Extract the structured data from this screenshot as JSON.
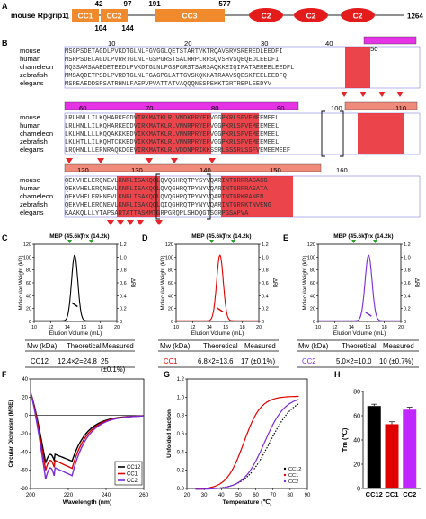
{
  "panel_letters": [
    "A",
    "B",
    "C",
    "D",
    "E",
    "F",
    "G",
    "H"
  ],
  "panelA": {
    "protein": "mouse Rpgrip1l",
    "domains": [
      "CC1",
      "CC2",
      "CC3",
      "C2",
      "C2",
      "C2"
    ],
    "positions_top": [
      "1",
      "42",
      "97",
      "191",
      "577",
      "1264"
    ],
    "positions_bottom": [
      "104",
      "144"
    ]
  },
  "panelB": {
    "species": [
      "mouse",
      "human",
      "chameleon",
      "zebrafish",
      "elegans"
    ],
    "block1": {
      "numbers": [
        "10",
        "20",
        "30",
        "40",
        "50"
      ],
      "seqs": [
        "MSGPSDETAGDLPVKDTGLNLFGVGGLQETSTARTVKTRQAVSRVSREREDLEEDFI",
        "MSRPSDELAGDLPVRRTGLNLFGSPGRSTSALRRPLRRSQVSHVSQEQEDLEEDFI",
        "MQSSAMSAAEDETEEDLPVKDTGLNLFGSPGRSTSARSAQKKEIQIPATAEREELEEDFL",
        "MMSAQDETPSDLPVRDTGLNLFGAGPGLATTGVSKQKKATRAAVSQESKTEELEEDFQ",
        "MSREAEDDSPSATRHNLFAEPVPVATTATVAQQQNESPEKKTGRTREPLEEDYV"
      ]
    },
    "block2": {
      "numbers": [
        "60",
        "70",
        "80",
        "90",
        "100",
        "110"
      ],
      "seqs": [
        "LRLHNLLILKQHARKEGDVIRKMATKLRLVNDKPRYERVGGPKRLSFVEMEEMEEL",
        "LRLHNLLILKQHARKEDDVIRKMATKLRLVNNRPRYERVGGPKRLSFVEMEEMEEL",
        "LKLHNLLLLKQQAKKKEDVIKKMATKLRLVNNRPRYERVGGPKRLSFVEMEEMEEL",
        "LKLHTLLILKQHTCKKEDVIKKMATKLRLVNNRPRYERVGGPKRLSFVEMEEMEEL",
        "LRQHNLLLERNRAQKDGEVIRKMATKLRLVDDNPRIKKSSRLSSSRLSSFVEMEEMEEF"
      ]
    },
    "block3": {
      "numbers": [
        "120",
        "130",
        "140",
        "150",
        "160"
      ],
      "seqs": [
        "QEKVHELERQNEVLKNRLISAKQQLQVQGHRQTPYSYVQARINTGRRRASASG",
        "QEKVHELERQNEVLKNRLISAKQQLQVQGHRQTPYNYVQARINTGRRRASATA",
        "QEKVHELERHNEVLKNRLISAKQQLQVQGHRQTPYNYVQARINTGRKRANEN",
        "QEKVHELERQNEVLKNRLISAKQQLQIQGHRQTPYNYVQARINTGRRKTNVENG",
        "KAAKQLLLYTAPSARTATTASMMTGRPGRQPLSHDQGTSGRPGSAPVA"
      ]
    }
  },
  "panelCDE": {
    "ylabel": "Molecular Weight (kD)",
    "xlabel": "Elution Volume (mL)",
    "right_ylabel": "ΔRI",
    "markers": [
      {
        "label": "MBP (45.6k)",
        "volume": 14.3
      },
      {
        "label": "Trx (14.2k)",
        "volume": 16.9
      }
    ],
    "charts": [
      {
        "panel": "C",
        "name": "CC12",
        "color": "#000000",
        "peak": 14.9,
        "width": 0.38,
        "plateau": 25
      },
      {
        "panel": "D",
        "name": "CC1",
        "color": "#e00000",
        "peak": 15.3,
        "width": 0.4,
        "plateau": 17
      },
      {
        "panel": "E",
        "name": "CC2",
        "color": "#7a2ad8",
        "peak": 16.1,
        "width": 0.42,
        "plateau": 10
      }
    ],
    "xlim": [
      10,
      20
    ],
    "ylim": [
      0,
      120
    ],
    "right_ylim": [
      0,
      1.2
    ],
    "x_ticks": [
      "10",
      "12",
      "14",
      "16",
      "18",
      "20"
    ],
    "y_ticks": [
      "0",
      "20",
      "40",
      "60",
      "80",
      "100",
      "120"
    ],
    "right_ticks": [
      "0",
      "0.2",
      "0.4",
      "0.6",
      "0.8",
      "1.0",
      "1.2"
    ]
  },
  "tables": [
    {
      "headers": [
        "Mw (kDa)",
        "Theoretical",
        "Measured"
      ],
      "row": [
        "CC12",
        "12.4×2=24.8",
        "25 (±0.1%)"
      ],
      "color": "#000000"
    },
    {
      "headers": [
        "Mw (kDa)",
        "Theoretical",
        "Measured"
      ],
      "row": [
        "CC1",
        "6.8×2=13.6",
        "17 (±0.1%)"
      ],
      "color": "#e00000"
    },
    {
      "headers": [
        "Mw (kDa)",
        "Theoretical",
        "Measured"
      ],
      "row": [
        "CC2",
        "5.0×2=10.0",
        "10 (±0.7%)"
      ],
      "color": "#7a2ad8"
    }
  ],
  "chart_data": [
    {
      "type": "line",
      "panel": "F",
      "xlabel": "Wavelength (nm)",
      "ylabel": "Circular Dichroism (MRE)",
      "xlim": [
        200,
        260
      ],
      "ylim": [
        -80,
        40
      ],
      "x_ticks": [
        "200",
        "220",
        "240",
        "260"
      ],
      "y_ticks": [
        "-80",
        "-60",
        "-40",
        "-20",
        "0",
        "20",
        "40"
      ],
      "legend": [
        "CC12",
        "CC1",
        "CC2"
      ],
      "legend_placement": "bottom-right",
      "series": [
        {
          "name": "CC12",
          "color": "#000000",
          "min208": -52,
          "min222": -50
        },
        {
          "name": "CC1",
          "color": "#e00000",
          "min208": -60,
          "min222": -58
        },
        {
          "name": "CC2",
          "color": "#7a2ad8",
          "min208": -70,
          "min222": -66
        }
      ]
    },
    {
      "type": "scatter",
      "panel": "G",
      "xlabel": "Temperature (℃)",
      "ylabel": "Unfolded fraction",
      "xlim": [
        20,
        90
      ],
      "ylim": [
        0,
        1.2
      ],
      "x_ticks": [
        "20",
        "30",
        "40",
        "50",
        "60",
        "70",
        "80",
        "90"
      ],
      "y_ticks": [
        "0.0",
        "0.2",
        "0.4",
        "0.6",
        "0.8",
        "1.0",
        "1.2"
      ],
      "legend": [
        "CC12",
        "CC1",
        "CC2"
      ],
      "legend_placement": "bottom-right",
      "series": [
        {
          "name": "CC12",
          "color": "#000000",
          "tm": 68,
          "slope": 7
        },
        {
          "name": "CC1",
          "color": "#e00000",
          "tm": 53,
          "slope": 5
        },
        {
          "name": "CC2",
          "color": "#7a2ad8",
          "tm": 65,
          "slope": 6
        }
      ]
    },
    {
      "type": "bar",
      "panel": "H",
      "ylabel": "Tm (℃)",
      "categories": [
        "CC12",
        "CC1",
        "CC2"
      ],
      "values": [
        68,
        53,
        65
      ],
      "errors": [
        1.5,
        2,
        2
      ],
      "colors": [
        "#000000",
        "#e00000",
        "#c026ff"
      ],
      "ylim": [
        0,
        80
      ],
      "y_ticks": [
        "0",
        "20",
        "40",
        "60",
        "80"
      ]
    }
  ]
}
